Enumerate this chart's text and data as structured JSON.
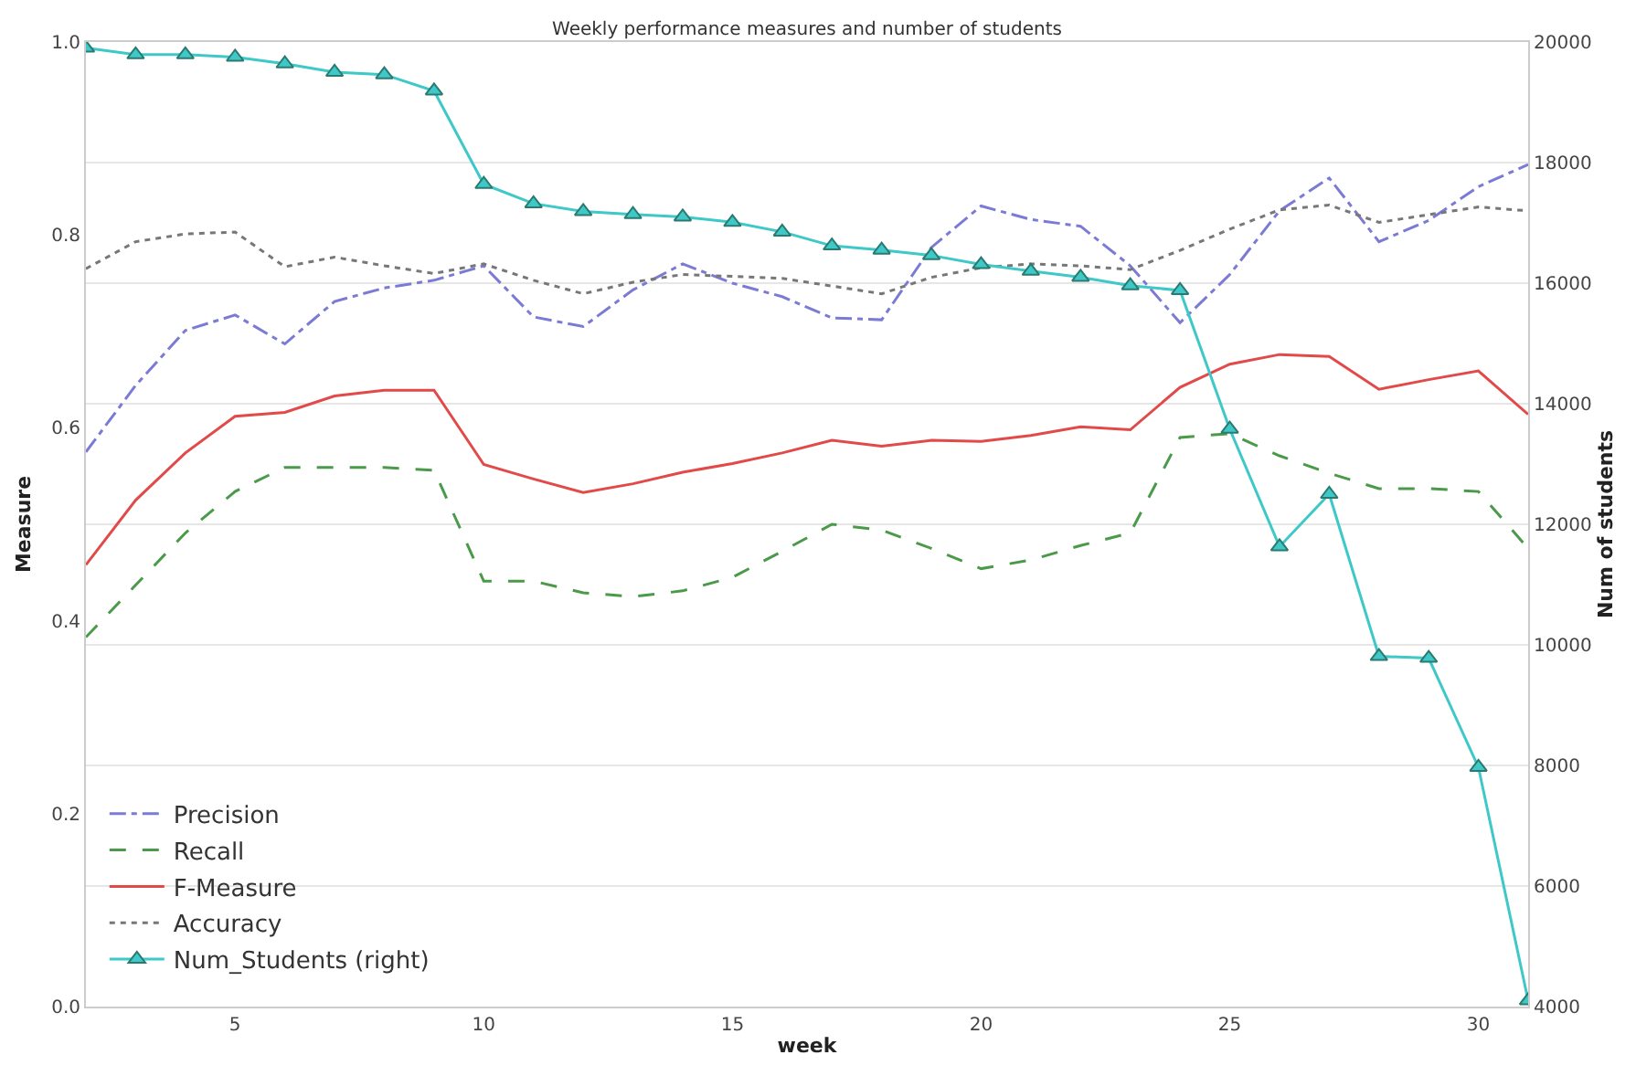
{
  "chart_data": {
    "type": "line",
    "title": "Weekly performance measures and number of students",
    "xlabel": "week",
    "ylabel": "Measure",
    "y2label": "Num of students",
    "x": [
      2,
      3,
      4,
      5,
      6,
      7,
      8,
      9,
      10,
      11,
      12,
      13,
      14,
      15,
      16,
      17,
      18,
      19,
      20,
      21,
      22,
      23,
      24,
      25,
      26,
      27,
      28,
      29,
      30,
      31
    ],
    "series": [
      {
        "name": "Precision",
        "color": "#7b7bd6",
        "line_style": "dashdot",
        "marker": "none",
        "values": [
          0.575,
          0.644,
          0.701,
          0.717,
          0.687,
          0.731,
          0.745,
          0.753,
          0.768,
          0.715,
          0.705,
          0.743,
          0.77,
          0.75,
          0.736,
          0.714,
          0.712,
          0.787,
          0.83,
          0.816,
          0.809,
          0.768,
          0.709,
          0.759,
          0.825,
          0.859,
          0.793,
          0.815,
          0.85,
          0.873
        ]
      },
      {
        "name": "Recall",
        "color": "#4a9a4a",
        "line_style": "dashed",
        "marker": "none",
        "values": [
          0.383,
          0.437,
          0.491,
          0.534,
          0.559,
          0.559,
          0.559,
          0.556,
          0.441,
          0.441,
          0.429,
          0.425,
          0.431,
          0.445,
          0.472,
          0.5,
          0.494,
          0.475,
          0.454,
          0.463,
          0.478,
          0.491,
          0.59,
          0.594,
          0.571,
          0.553,
          0.537,
          0.537,
          0.534,
          0.475
        ]
      },
      {
        "name": "F-Measure",
        "color": "#e24a4a",
        "line_style": "solid",
        "marker": "none",
        "values": [
          0.458,
          0.525,
          0.574,
          0.612,
          0.616,
          0.633,
          0.639,
          0.639,
          0.562,
          0.547,
          0.533,
          0.542,
          0.554,
          0.563,
          0.574,
          0.587,
          0.581,
          0.587,
          0.586,
          0.592,
          0.601,
          0.598,
          0.642,
          0.666,
          0.676,
          0.674,
          0.64,
          0.65,
          0.659,
          0.614
        ]
      },
      {
        "name": "Accuracy",
        "color": "#777777",
        "line_style": "dotted",
        "marker": "none",
        "values": [
          0.765,
          0.793,
          0.801,
          0.803,
          0.767,
          0.777,
          0.768,
          0.76,
          0.77,
          0.753,
          0.739,
          0.751,
          0.759,
          0.757,
          0.755,
          0.747,
          0.739,
          0.756,
          0.766,
          0.77,
          0.768,
          0.764,
          0.784,
          0.806,
          0.826,
          0.831,
          0.813,
          0.821,
          0.829,
          0.825
        ]
      },
      {
        "name": "Num_Students (right)",
        "color": "#3ec8c8",
        "line_style": "solid",
        "marker": "triangle",
        "axis": "y2",
        "values": [
          19900,
          19790,
          19790,
          19750,
          19640,
          19500,
          19460,
          19190,
          17640,
          17320,
          17190,
          17140,
          17100,
          17010,
          16850,
          16620,
          16550,
          16460,
          16310,
          16200,
          16100,
          15960,
          15880,
          13580,
          11630,
          12500,
          9810,
          9780,
          7970,
          4100
        ]
      }
    ],
    "xlim": [
      2,
      31
    ],
    "xticks": [
      5,
      10,
      15,
      20,
      25,
      30
    ],
    "ylim": [
      0,
      1
    ],
    "yticks": [
      {
        "value": 0,
        "label": "0.0"
      },
      0.2,
      0.4,
      0.6,
      0.8,
      {
        "value": 1,
        "label": "1.0"
      }
    ],
    "y2lim": [
      4000,
      20000
    ],
    "y2ticks": [
      4000,
      6000,
      8000,
      10000,
      12000,
      14000,
      16000,
      18000,
      20000
    ],
    "grid": "y2",
    "legend": "bottom left"
  }
}
